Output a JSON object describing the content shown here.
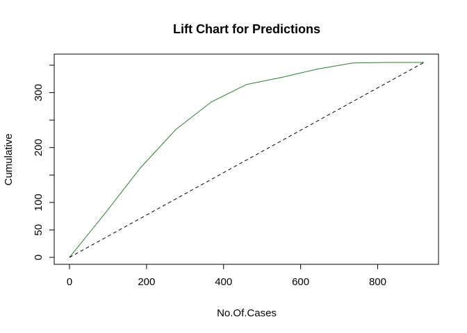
{
  "chart_data": {
    "type": "line",
    "title": "Lift Chart for Predictions",
    "xlabel": "No.Of.Cases",
    "ylabel": "Cumulative",
    "xlim": [
      0,
      920
    ],
    "ylim": [
      0,
      355
    ],
    "x_ticks": [
      0,
      200,
      400,
      600,
      800
    ],
    "x_tick_labels": [
      "0",
      "200",
      "400",
      "600",
      "800"
    ],
    "y_ticks": [
      0,
      50,
      100,
      150,
      200,
      250,
      300,
      350
    ],
    "y_tick_labels": [
      "0",
      "50",
      "100",
      "",
      "200",
      "",
      "300",
      ""
    ],
    "grid": false,
    "legend": "none",
    "series": [
      {
        "x": [
          0,
          92,
          184,
          276,
          368,
          460,
          552,
          644,
          736,
          828,
          920
        ],
        "values": [
          0,
          80,
          163,
          233,
          283,
          315,
          328,
          343,
          354,
          355,
          355
        ],
        "color": "#2e7d32",
        "style": "solid"
      },
      {
        "x": [
          0,
          920
        ],
        "values": [
          0,
          355
        ],
        "color": "#000000",
        "style": "dashed"
      }
    ]
  }
}
